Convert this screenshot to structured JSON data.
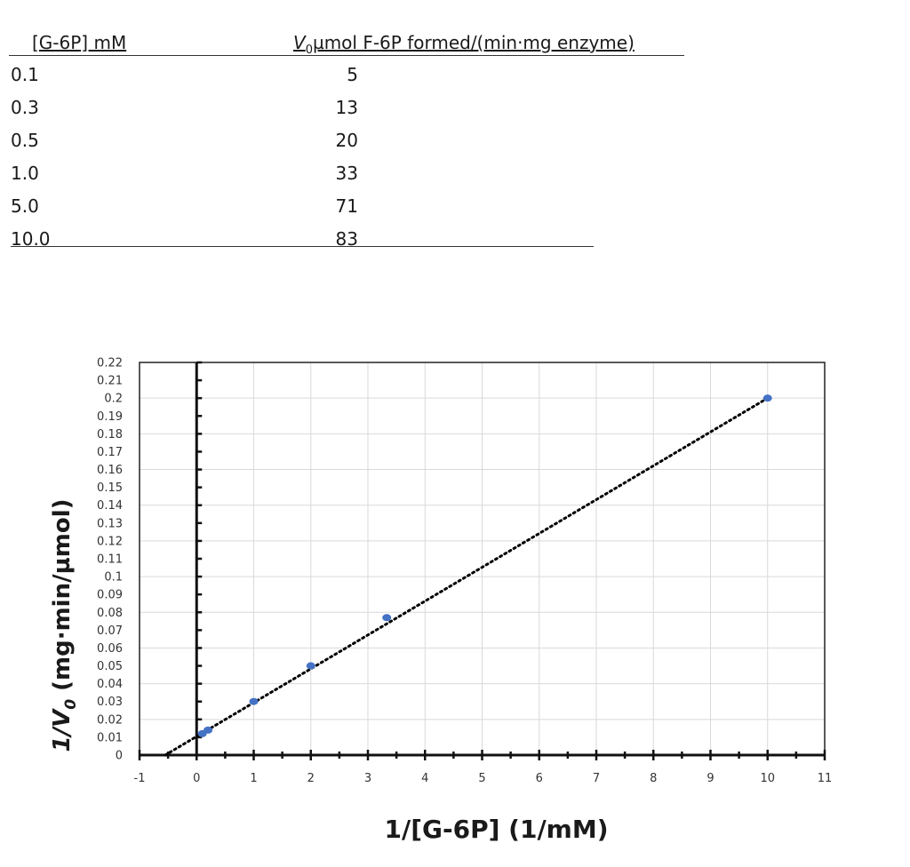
{
  "table": {
    "header_col1": "[G-6P] mM",
    "header_col2_prefix": "V",
    "header_col2_sub": "0",
    "header_col2_rest": "µmol F-6P formed/(min·mg enzyme)",
    "rows": [
      {
        "c": "0.1",
        "v": "5"
      },
      {
        "c": "0.3",
        "v": "13"
      },
      {
        "c": "0.5",
        "v": "20"
      },
      {
        "c": "1.0",
        "v": "33"
      },
      {
        "c": "5.0",
        "v": "71"
      },
      {
        "c": "10.0",
        "v": "83"
      }
    ]
  },
  "chart_data": {
    "type": "scatter",
    "xlabel": "1/[G-6P] (1/mM)",
    "ylabel_prefix": "1/V",
    "ylabel_sub": "0",
    "ylabel_rest": " (mg·min/µmol)",
    "xlim": [
      -1,
      11
    ],
    "ylim": [
      0,
      0.22
    ],
    "x_ticks": [
      "-1",
      "0",
      "1",
      "2",
      "3",
      "4",
      "5",
      "6",
      "7",
      "8",
      "9",
      "10",
      "11"
    ],
    "y_ticks": [
      "0",
      "0.01",
      "0.02",
      "0.03",
      "0.04",
      "0.05",
      "0.06",
      "0.07",
      "0.08",
      "0.09",
      "0.1",
      "0.11",
      "0.12",
      "0.13",
      "0.14",
      "0.15",
      "0.16",
      "0.17",
      "0.18",
      "0.19",
      "0.2",
      "0.21",
      "0.22"
    ],
    "grid": true,
    "series": [
      {
        "points": [
          {
            "x": 0.1,
            "y": 0.012
          },
          {
            "x": 0.2,
            "y": 0.014
          },
          {
            "x": 1,
            "y": 0.03
          },
          {
            "x": 2,
            "y": 0.05
          },
          {
            "x": 3.33,
            "y": 0.077
          },
          {
            "x": 10,
            "y": 0.2
          }
        ],
        "color": "#4472C4"
      }
    ],
    "trendline": {
      "style": "dotted",
      "color": "#000000",
      "x_start": -0.55,
      "y_start": 0,
      "x_end": 10,
      "y_end": 0.2
    }
  }
}
